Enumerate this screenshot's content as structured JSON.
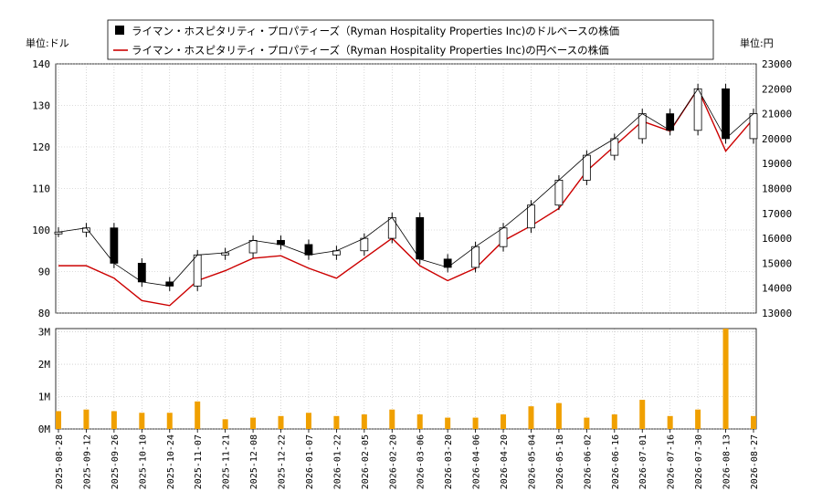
{
  "chart_data": [
    {
      "type": "line",
      "left_unit_label": "単位:ドル",
      "right_unit_label": "単位:円",
      "legend": {
        "placement": "top",
        "entries": [
          {
            "name": "ライマン・ホスピタリティ・プロパティーズ（Ryman Hospitality Properties Inc)のドルベースの株価",
            "color": "#000000",
            "marker": "square"
          },
          {
            "name": "ライマン・ホスピタリティ・プロパティーズ（Ryman Hospitality Properties Inc)の円ベースの株価",
            "color": "#cc0000",
            "marker": "line"
          }
        ]
      },
      "ylim_left": [
        80,
        140
      ],
      "ylim_right": [
        13000,
        23000
      ],
      "yticks_left": [
        "80",
        "90",
        "100",
        "110",
        "120",
        "130",
        "140"
      ],
      "yticks_right": [
        "13000",
        "14000",
        "15000",
        "16000",
        "17000",
        "18000",
        "19000",
        "20000",
        "21000",
        "22000",
        "23000"
      ],
      "grid": true,
      "x": [
        "2025-08-28",
        "2025-09-12",
        "2025-09-26",
        "2025-10-10",
        "2025-10-24",
        "2025-11-07",
        "2025-11-21",
        "2025-12-08",
        "2025-12-22",
        "2026-01-07",
        "2026-01-22",
        "2026-02-05",
        "2026-02-20",
        "2026-03-06",
        "2026-03-20",
        "2026-04-06",
        "2026-04-20",
        "2026-05-04",
        "2026-05-18",
        "2026-06-02",
        "2026-06-16",
        "2026-07-01",
        "2026-07-16",
        "2026-07-30",
        "2026-08-13",
        "2026-08-27"
      ],
      "series": [
        {
          "name": "ライマン・ホスピタリティ・プロパティーズ（Ryman Hospitality Properties Inc)のドルベースの株価",
          "axis": "left",
          "style": "candlestick",
          "color": "#000000",
          "values": [
            99.5,
            100.5,
            92.0,
            87.5,
            86.5,
            94.0,
            94.5,
            97.5,
            96.5,
            94.0,
            95.0,
            98.0,
            103.0,
            93.0,
            91.0,
            96.0,
            100.5,
            106.0,
            112.0,
            118.0,
            122.0,
            128.0,
            124.0,
            134.0,
            122.0,
            128.0
          ]
        },
        {
          "name": "ライマン・ホスピタリティ・プロパティーズ（Ryman Hospitality Properties Inc)の円ベースの株価",
          "axis": "right",
          "style": "line",
          "color": "#cc0000",
          "values": [
            14900,
            14900,
            14400,
            13500,
            13300,
            14300,
            14700,
            15200,
            15300,
            14800,
            14400,
            15200,
            16000,
            14900,
            14300,
            14800,
            15900,
            16500,
            17200,
            18700,
            19700,
            20700,
            20300,
            22000,
            19500,
            20800
          ]
        }
      ]
    },
    {
      "type": "bar",
      "yticks": [
        "0M",
        "1M",
        "2M",
        "3M"
      ],
      "ylim": [
        0,
        3.1
      ],
      "color": "#f0a000",
      "x": [
        "2025-08-28",
        "2025-09-12",
        "2025-09-26",
        "2025-10-10",
        "2025-10-24",
        "2025-11-07",
        "2025-11-21",
        "2025-12-08",
        "2025-12-22",
        "2026-01-07",
        "2026-01-22",
        "2026-02-05",
        "2026-02-20",
        "2026-03-06",
        "2026-03-20",
        "2026-04-06",
        "2026-04-20",
        "2026-05-04",
        "2026-05-18",
        "2026-06-02",
        "2026-06-16",
        "2026-07-01",
        "2026-07-16",
        "2026-07-30",
        "2026-08-13",
        "2026-08-27"
      ],
      "values": [
        0.55,
        0.6,
        0.55,
        0.5,
        0.5,
        0.85,
        0.3,
        0.35,
        0.4,
        0.5,
        0.4,
        0.45,
        0.6,
        0.45,
        0.35,
        0.35,
        0.45,
        0.7,
        0.8,
        0.35,
        0.45,
        0.9,
        0.4,
        0.6,
        3.1,
        0.4
      ]
    }
  ]
}
